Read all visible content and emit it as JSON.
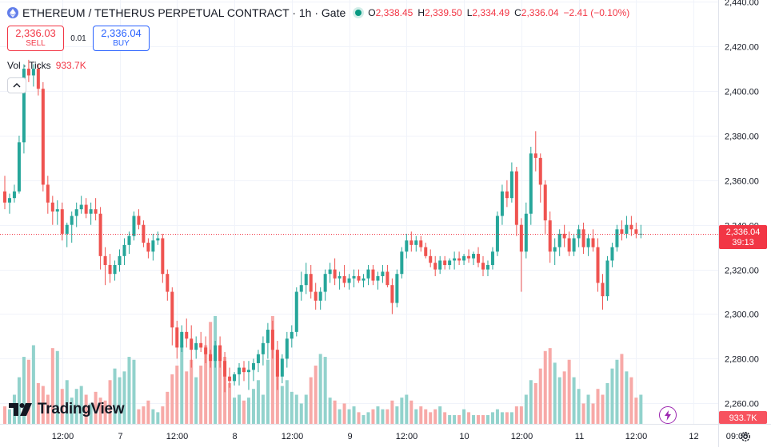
{
  "header": {
    "title": "ETHEREUM / TETHERUS PERPETUAL CONTRACT · 1h · Gate",
    "ohlc": {
      "o_label": "O",
      "o": "2,338.45",
      "h_label": "H",
      "h": "2,339.50",
      "l_label": "L",
      "l": "2,334.49",
      "c_label": "C",
      "c": "2,336.04",
      "change": "−2.41 (−0.10%)"
    }
  },
  "trade": {
    "sell_price": "2,336.03",
    "sell_label": "SELL",
    "spread": "0.01",
    "buy_price": "2,336.04",
    "buy_label": "BUY"
  },
  "volume": {
    "label": "Vol · Ticks",
    "value": "933.7K"
  },
  "logo": {
    "text": "TradingView"
  },
  "colors": {
    "up": "#26a69a",
    "down": "#ef5350",
    "up_volume": "#92d2cc",
    "down_volume": "#f7a9a7",
    "last_price": "#f23645",
    "grid": "#f0f3fa"
  },
  "icons": [
    "ethereum-coin-icon",
    "chevron-up-icon",
    "tradingview-logo-icon",
    "lightning-icon",
    "gear-icon"
  ],
  "chart_data": {
    "type": "candlestick",
    "title": "ETHEREUM / TETHERUS PERPETUAL CONTRACT · 1h · Gate",
    "y_ticks": [
      2260,
      2280,
      2300,
      2320,
      2340,
      2360,
      2380,
      2400,
      2420,
      2440
    ],
    "y_tick_labels": [
      "2,260.00",
      "2,280.00",
      "2,300.00",
      "2,320.00",
      "2,340.00",
      "2,360.00",
      "2,380.00",
      "2,400.00",
      "2,420.00",
      "2,440.00"
    ],
    "ylim": [
      2250.8,
      2440.8
    ],
    "x_tick_labels": [
      "12:00",
      "7",
      "12:00",
      "8",
      "12:00",
      "9",
      "12:00",
      "10",
      "12:00",
      "11",
      "12:00",
      "12",
      "09:00"
    ],
    "x_tick_hours": [
      12,
      24,
      36,
      48,
      60,
      72,
      84,
      96,
      108,
      120,
      132,
      144,
      153
    ],
    "first_bar_hour": 0,
    "last_price": 2336.04,
    "last_price_label": "2,336.04",
    "countdown": "39:13",
    "volume_label": "933.7K",
    "candles": [
      [
        2355,
        2362,
        2347,
        2350
      ],
      [
        2350,
        2354,
        2345,
        2352
      ],
      [
        2352,
        2358,
        2350,
        2355
      ],
      [
        2355,
        2380,
        2354,
        2377
      ],
      [
        2377,
        2412,
        2372,
        2410
      ],
      [
        2410,
        2414,
        2404,
        2407
      ],
      [
        2407,
        2412,
        2402,
        2410
      ],
      [
        2410,
        2412,
        2398,
        2401
      ],
      [
        2401,
        2404,
        2355,
        2358
      ],
      [
        2358,
        2362,
        2345,
        2350
      ],
      [
        2350,
        2353,
        2340,
        2346
      ],
      [
        2346,
        2351,
        2340,
        2347
      ],
      [
        2347,
        2350,
        2333,
        2336
      ],
      [
        2336,
        2341,
        2330,
        2340
      ],
      [
        2340,
        2346,
        2332,
        2344
      ],
      [
        2344,
        2350,
        2339,
        2347
      ],
      [
        2347,
        2353,
        2345,
        2349
      ],
      [
        2349,
        2352,
        2343,
        2345
      ],
      [
        2345,
        2350,
        2340,
        2347
      ],
      [
        2347,
        2352,
        2342,
        2345
      ],
      [
        2345,
        2348,
        2320,
        2326
      ],
      [
        2326,
        2330,
        2313,
        2322
      ],
      [
        2322,
        2327,
        2314,
        2318
      ],
      [
        2318,
        2324,
        2315,
        2322
      ],
      [
        2322,
        2329,
        2319,
        2326
      ],
      [
        2326,
        2334,
        2322,
        2331
      ],
      [
        2331,
        2337,
        2327,
        2335
      ],
      [
        2335,
        2346,
        2333,
        2344
      ],
      [
        2344,
        2347,
        2338,
        2340
      ],
      [
        2340,
        2342,
        2330,
        2332
      ],
      [
        2332,
        2334,
        2325,
        2328
      ],
      [
        2328,
        2336,
        2324,
        2333
      ],
      [
        2333,
        2337,
        2331,
        2334
      ],
      [
        2334,
        2336,
        2314,
        2318
      ],
      [
        2318,
        2320,
        2306,
        2310
      ],
      [
        2310,
        2312,
        2286,
        2294
      ],
      [
        2294,
        2297,
        2280,
        2285
      ],
      [
        2285,
        2295,
        2283,
        2292
      ],
      [
        2292,
        2298,
        2285,
        2289
      ],
      [
        2289,
        2295,
        2276,
        2284
      ],
      [
        2284,
        2290,
        2280,
        2287
      ],
      [
        2287,
        2292,
        2283,
        2285
      ],
      [
        2285,
        2290,
        2278,
        2282
      ],
      [
        2282,
        2284,
        2276,
        2279
      ],
      [
        2279,
        2288,
        2276,
        2286
      ],
      [
        2286,
        2290,
        2276,
        2279
      ],
      [
        2279,
        2283,
        2265,
        2272
      ],
      [
        2272,
        2276,
        2267,
        2270
      ],
      [
        2270,
        2274,
        2268,
        2273
      ],
      [
        2273,
        2278,
        2268,
        2276
      ],
      [
        2276,
        2279,
        2270,
        2274
      ],
      [
        2274,
        2279,
        2266,
        2275
      ],
      [
        2275,
        2280,
        2270,
        2278
      ],
      [
        2278,
        2284,
        2274,
        2282
      ],
      [
        2282,
        2290,
        2277,
        2287
      ],
      [
        2287,
        2296,
        2280,
        2293
      ],
      [
        2293,
        2297,
        2280,
        2284
      ],
      [
        2284,
        2288,
        2266,
        2272
      ],
      [
        2272,
        2282,
        2269,
        2280
      ],
      [
        2280,
        2292,
        2276,
        2289
      ],
      [
        2289,
        2295,
        2285,
        2292
      ],
      [
        2292,
        2312,
        2290,
        2310
      ],
      [
        2310,
        2319,
        2306,
        2313
      ],
      [
        2313,
        2323,
        2309,
        2318
      ],
      [
        2318,
        2322,
        2307,
        2310
      ],
      [
        2310,
        2314,
        2302,
        2306
      ],
      [
        2306,
        2312,
        2302,
        2310
      ],
      [
        2310,
        2320,
        2306,
        2318
      ],
      [
        2318,
        2323,
        2314,
        2320
      ],
      [
        2320,
        2325,
        2313,
        2316
      ],
      [
        2316,
        2319,
        2311,
        2317
      ],
      [
        2317,
        2322,
        2312,
        2314
      ],
      [
        2314,
        2318,
        2311,
        2316
      ],
      [
        2316,
        2320,
        2312,
        2317
      ],
      [
        2317,
        2320,
        2314,
        2315
      ],
      [
        2315,
        2318,
        2312,
        2316
      ],
      [
        2316,
        2322,
        2313,
        2320
      ],
      [
        2320,
        2322,
        2313,
        2315
      ],
      [
        2315,
        2319,
        2311,
        2317
      ],
      [
        2317,
        2322,
        2314,
        2319
      ],
      [
        2319,
        2322,
        2312,
        2313
      ],
      [
        2313,
        2316,
        2300,
        2305
      ],
      [
        2305,
        2320,
        2303,
        2318
      ],
      [
        2318,
        2330,
        2316,
        2328
      ],
      [
        2328,
        2336,
        2325,
        2333
      ],
      [
        2333,
        2337,
        2328,
        2331
      ],
      [
        2331,
        2335,
        2328,
        2333
      ],
      [
        2333,
        2335,
        2328,
        2330
      ],
      [
        2330,
        2332,
        2325,
        2326
      ],
      [
        2326,
        2329,
        2321,
        2323
      ],
      [
        2323,
        2326,
        2317,
        2320
      ],
      [
        2320,
        2326,
        2318,
        2324
      ],
      [
        2324,
        2326,
        2320,
        2322
      ],
      [
        2322,
        2325,
        2320,
        2324
      ],
      [
        2324,
        2328,
        2320,
        2325
      ],
      [
        2325,
        2328,
        2322,
        2324
      ],
      [
        2324,
        2327,
        2322,
        2326
      ],
      [
        2326,
        2329,
        2323,
        2325
      ],
      [
        2325,
        2328,
        2322,
        2327
      ],
      [
        2327,
        2330,
        2321,
        2323
      ],
      [
        2323,
        2326,
        2317,
        2320
      ],
      [
        2320,
        2324,
        2317,
        2322
      ],
      [
        2322,
        2330,
        2320,
        2328
      ],
      [
        2328,
        2346,
        2326,
        2344
      ],
      [
        2344,
        2358,
        2340,
        2355
      ],
      [
        2355,
        2360,
        2348,
        2352
      ],
      [
        2352,
        2368,
        2350,
        2364
      ],
      [
        2364,
        2366,
        2335,
        2340
      ],
      [
        2340,
        2343,
        2310,
        2328
      ],
      [
        2328,
        2350,
        2325,
        2345
      ],
      [
        2345,
        2375,
        2340,
        2372
      ],
      [
        2372,
        2382,
        2364,
        2370
      ],
      [
        2370,
        2372,
        2350,
        2358
      ],
      [
        2358,
        2360,
        2336,
        2342
      ],
      [
        2342,
        2346,
        2323,
        2328
      ],
      [
        2328,
        2334,
        2322,
        2330
      ],
      [
        2330,
        2338,
        2326,
        2336
      ],
      [
        2336,
        2340,
        2330,
        2334
      ],
      [
        2334,
        2337,
        2326,
        2328
      ],
      [
        2328,
        2336,
        2326,
        2334
      ],
      [
        2334,
        2340,
        2330,
        2338
      ],
      [
        2338,
        2341,
        2327,
        2330
      ],
      [
        2330,
        2336,
        2326,
        2334
      ],
      [
        2334,
        2338,
        2328,
        2330
      ],
      [
        2330,
        2334,
        2310,
        2314
      ],
      [
        2314,
        2318,
        2302,
        2308
      ],
      [
        2308,
        2326,
        2306,
        2324
      ],
      [
        2324,
        2332,
        2321,
        2330
      ],
      [
        2330,
        2340,
        2328,
        2338
      ],
      [
        2338,
        2342,
        2333,
        2336
      ],
      [
        2336,
        2344,
        2334,
        2340
      ],
      [
        2340,
        2344,
        2335,
        2338
      ],
      [
        2338,
        2341,
        2334,
        2336
      ],
      [
        2336,
        2340,
        2334,
        2336
      ]
    ],
    "volume": [
      6,
      5,
      10,
      16,
      23,
      22,
      27,
      14,
      13,
      10,
      26,
      25,
      12,
      15,
      9,
      12,
      13,
      10,
      7,
      11,
      9,
      8,
      15,
      19,
      16,
      18,
      23,
      22,
      5,
      6,
      8,
      5,
      4,
      6,
      11,
      17,
      20,
      27,
      18,
      22,
      16,
      20,
      27,
      35,
      37,
      27,
      23,
      14,
      9,
      10,
      8,
      9,
      12,
      15,
      10,
      22,
      37,
      24,
      13,
      15,
      11,
      10,
      7,
      10,
      16,
      20,
      24,
      23,
      9,
      8,
      5,
      7,
      5,
      6,
      4,
      3,
      4,
      5,
      6,
      5,
      5,
      8,
      6,
      9,
      10,
      8,
      5,
      6,
      5,
      4,
      5,
      6,
      4,
      3,
      3,
      3,
      5,
      4,
      3,
      3,
      3,
      3,
      4,
      5,
      4,
      4,
      4,
      6,
      6,
      10,
      15,
      14,
      19,
      25,
      26,
      21,
      16,
      18,
      22,
      16,
      12,
      7,
      10,
      7,
      12,
      10,
      14,
      19,
      22,
      24,
      18,
      16,
      9,
      10,
      11,
      10,
      5,
      4,
      4,
      5,
      3,
      4,
      5,
      4,
      3,
      4
    ]
  }
}
